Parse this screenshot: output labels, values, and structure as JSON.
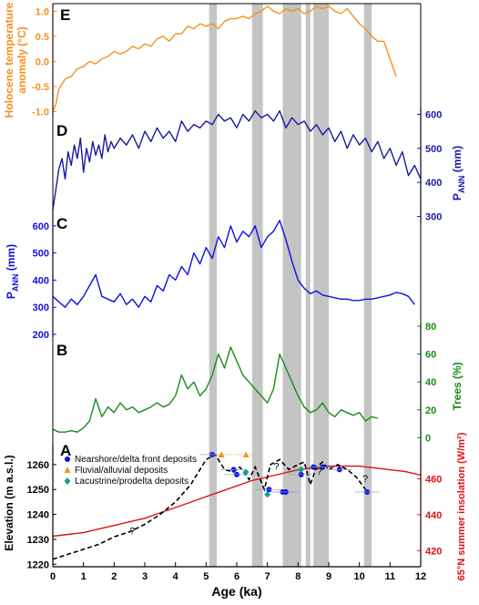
{
  "xaxis": {
    "label": "Age (ka)",
    "range": [
      0,
      12
    ],
    "ticks": [
      0,
      1,
      2,
      3,
      4,
      5,
      6,
      7,
      8,
      9,
      10,
      11,
      12
    ]
  },
  "shaded_bands": [
    [
      5.1,
      5.35
    ],
    [
      6.5,
      6.85
    ],
    [
      7.5,
      8.1
    ],
    [
      8.25,
      8.4
    ],
    [
      8.5,
      9.0
    ],
    [
      10.15,
      10.4
    ]
  ],
  "question_marks": [
    {
      "x": 2.5,
      "y": 1232,
      "text": "?"
    },
    {
      "x": 7.2,
      "y": 1258,
      "text": "?"
    },
    {
      "x": 8.6,
      "y": 1256,
      "text": "?"
    },
    {
      "x": 10.1,
      "y": 1253,
      "text": "?"
    }
  ],
  "chart_data": [
    {
      "panel": "E",
      "type": "line",
      "ylabel": "Holocene temperature anomaly (°C)",
      "color": "#f5901e",
      "yaxis_side": "left",
      "ylim": [
        -1.1,
        1.15
      ],
      "yticks": [
        "1.0",
        "0.5",
        "0.0",
        "-0.5",
        "-1.0"
      ],
      "ytick_values": [
        1.0,
        0.5,
        0.0,
        -0.5,
        -1.0
      ],
      "series": [
        {
          "x": [
            0,
            0.1,
            0.2,
            0.4,
            0.6,
            0.8,
            1.0,
            1.2,
            1.4,
            1.6,
            1.8,
            2.0,
            2.2,
            2.4,
            2.6,
            2.8,
            3.0,
            3.2,
            3.4,
            3.6,
            3.8,
            4.0,
            4.2,
            4.4,
            4.6,
            4.8,
            5.0,
            5.2,
            5.4,
            5.6,
            5.8,
            6.0,
            6.2,
            6.4,
            6.6,
            6.8,
            7.0,
            7.2,
            7.4,
            7.6,
            7.8,
            8.0,
            8.2,
            8.4,
            8.6,
            8.8,
            9.0,
            9.2,
            9.4,
            9.6,
            9.8,
            10.0,
            10.2,
            10.4,
            10.6,
            10.8,
            11.0,
            11.2
          ],
          "values": [
            -1.0,
            -0.85,
            -0.55,
            -0.35,
            -0.3,
            -0.15,
            -0.1,
            0.0,
            -0.05,
            0.05,
            0.1,
            0.2,
            0.15,
            0.2,
            0.3,
            0.25,
            0.35,
            0.3,
            0.45,
            0.5,
            0.4,
            0.55,
            0.55,
            0.7,
            0.65,
            0.75,
            0.7,
            0.75,
            0.65,
            0.8,
            0.85,
            0.85,
            0.9,
            0.85,
            0.95,
            1.0,
            1.1,
            1.0,
            0.95,
            1.05,
            1.0,
            1.05,
            0.95,
            1.0,
            1.1,
            1.05,
            1.1,
            1.0,
            0.95,
            1.05,
            0.9,
            0.75,
            0.65,
            0.5,
            0.4,
            0.4,
            0.05,
            -0.3
          ]
        }
      ]
    },
    {
      "panel": "D",
      "type": "line",
      "ylabel": "PANN (mm)",
      "color": "#1a1aa0",
      "yaxis_side": "right",
      "ylim": [
        280,
        620
      ],
      "yticks": [
        "600",
        "500",
        "400",
        "300"
      ],
      "ytick_values": [
        600,
        500,
        400,
        300
      ],
      "series": [
        {
          "x": [
            0,
            0.1,
            0.2,
            0.3,
            0.4,
            0.5,
            0.6,
            0.7,
            0.8,
            0.9,
            1.0,
            1.1,
            1.2,
            1.3,
            1.4,
            1.5,
            1.6,
            1.7,
            1.8,
            1.9,
            2.0,
            2.2,
            2.4,
            2.6,
            2.8,
            3.0,
            3.2,
            3.4,
            3.6,
            3.8,
            4.0,
            4.2,
            4.4,
            4.6,
            4.8,
            5.0,
            5.2,
            5.4,
            5.6,
            5.8,
            6.0,
            6.2,
            6.4,
            6.6,
            6.8,
            7.0,
            7.2,
            7.4,
            7.6,
            7.8,
            8.0,
            8.2,
            8.4,
            8.6,
            8.8,
            9.0,
            9.2,
            9.4,
            9.6,
            9.8,
            10.0,
            10.2,
            10.4,
            10.6,
            10.8,
            11.0,
            11.2,
            11.4,
            11.6,
            11.8,
            12.0
          ],
          "values": [
            320,
            380,
            440,
            470,
            410,
            490,
            450,
            510,
            470,
            530,
            430,
            500,
            460,
            520,
            480,
            510,
            470,
            540,
            490,
            520,
            500,
            530,
            510,
            540,
            500,
            550,
            520,
            560,
            530,
            550,
            520,
            580,
            550,
            570,
            560,
            580,
            570,
            600,
            580,
            590,
            560,
            600,
            580,
            610,
            590,
            600,
            580,
            610,
            560,
            590,
            570,
            580,
            550,
            570,
            540,
            560,
            520,
            550,
            500,
            540,
            510,
            530,
            490,
            520,
            470,
            500,
            450,
            490,
            420,
            450,
            410
          ]
        }
      ]
    },
    {
      "panel": "C",
      "type": "line",
      "ylabel": "PANN (mm)",
      "color": "#1010e0",
      "yaxis_side": "left",
      "ylim": [
        190,
        660
      ],
      "yticks": [
        "600",
        "500",
        "400",
        "300",
        "200"
      ],
      "ytick_values": [
        600,
        500,
        400,
        300,
        200
      ],
      "series": [
        {
          "x": [
            0,
            0.2,
            0.4,
            0.6,
            0.8,
            1.0,
            1.2,
            1.4,
            1.6,
            1.8,
            2.0,
            2.2,
            2.4,
            2.6,
            2.8,
            3.0,
            3.2,
            3.4,
            3.6,
            3.8,
            4.0,
            4.2,
            4.4,
            4.6,
            4.8,
            5.0,
            5.2,
            5.4,
            5.6,
            5.8,
            6.0,
            6.2,
            6.4,
            6.6,
            6.8,
            7.0,
            7.2,
            7.4,
            7.6,
            7.8,
            8.0,
            8.2,
            8.4,
            8.6,
            8.8,
            9.0,
            9.2,
            9.4,
            9.6,
            9.8,
            10.0,
            10.2,
            10.4,
            10.6,
            10.8,
            11.0,
            11.2,
            11.4,
            11.6,
            11.8
          ],
          "values": [
            340,
            320,
            300,
            330,
            310,
            340,
            380,
            420,
            340,
            330,
            320,
            350,
            310,
            330,
            300,
            340,
            320,
            380,
            360,
            420,
            400,
            450,
            420,
            500,
            460,
            520,
            480,
            560,
            520,
            600,
            540,
            580,
            560,
            600,
            520,
            560,
            580,
            620,
            550,
            470,
            400,
            370,
            350,
            360,
            345,
            340,
            335,
            330,
            330,
            325,
            325,
            330,
            330,
            335,
            340,
            345,
            355,
            350,
            340,
            310
          ]
        }
      ]
    },
    {
      "panel": "B",
      "type": "line",
      "ylabel": "Trees (%)",
      "color": "#1a8a1a",
      "yaxis_side": "right",
      "ylim": [
        -5,
        82
      ],
      "yticks": [
        "80",
        "60",
        "40",
        "20",
        "0"
      ],
      "ytick_values": [
        80,
        60,
        40,
        20,
        0
      ],
      "series": [
        {
          "x": [
            0,
            0.2,
            0.4,
            0.6,
            0.8,
            1.0,
            1.2,
            1.4,
            1.6,
            1.8,
            2.0,
            2.2,
            2.4,
            2.6,
            2.8,
            3.0,
            3.2,
            3.4,
            3.6,
            3.8,
            4.0,
            4.2,
            4.4,
            4.6,
            4.8,
            5.0,
            5.2,
            5.4,
            5.6,
            5.8,
            6.0,
            6.2,
            6.4,
            6.6,
            6.8,
            7.0,
            7.2,
            7.4,
            7.6,
            7.8,
            8.0,
            8.2,
            8.4,
            8.6,
            8.8,
            9.0,
            9.2,
            9.4,
            9.6,
            9.8,
            10.0,
            10.2,
            10.4,
            10.6
          ],
          "values": [
            6,
            4,
            4,
            5,
            4,
            7,
            12,
            28,
            15,
            22,
            18,
            25,
            20,
            22,
            18,
            20,
            22,
            25,
            22,
            24,
            30,
            45,
            35,
            40,
            30,
            35,
            45,
            60,
            50,
            65,
            55,
            45,
            40,
            35,
            30,
            25,
            35,
            60,
            50,
            40,
            30,
            22,
            18,
            20,
            25,
            18,
            15,
            20,
            18,
            16,
            18,
            12,
            15,
            14
          ]
        }
      ]
    },
    {
      "panel": "A",
      "type": "line",
      "ylabel": "Elevation (m a.s.l.)",
      "y2label": "65°N summer insolation (W/m²)",
      "yaxis_side": "left",
      "ylim": [
        1219,
        1268
      ],
      "yticks": [
        "1260",
        "1250",
        "1240",
        "1230",
        "1220"
      ],
      "ytick_values": [
        1260,
        1250,
        1240,
        1230,
        1220
      ],
      "y2lim": [
        411,
        479
      ],
      "y2ticks": [
        "460",
        "440",
        "420"
      ],
      "y2tick_values": [
        460,
        440,
        420
      ],
      "series": [
        {
          "name": "insolation",
          "axis": "right",
          "color": "#e01010",
          "x": [
            0,
            0.5,
            1,
            1.5,
            2,
            2.5,
            3,
            3.5,
            4,
            4.5,
            5,
            5.5,
            6,
            6.5,
            7,
            7.5,
            8,
            8.5,
            9,
            9.5,
            10,
            10.5,
            11,
            11.5,
            12
          ],
          "values": [
            428,
            429,
            430,
            432,
            434,
            436,
            438,
            441,
            444,
            447,
            450,
            453,
            456,
            459,
            461,
            463,
            465,
            466,
            467,
            467,
            467,
            466,
            465,
            464,
            462
          ]
        },
        {
          "name": "lake-level",
          "axis": "left",
          "color": "#000000",
          "dashed": true,
          "x": [
            0,
            0.5,
            1,
            1.5,
            2,
            2.5,
            3,
            3.5,
            4,
            4.5,
            5,
            5.3,
            5.6,
            5.9,
            6.1,
            6.4,
            6.6,
            6.9,
            7.1,
            7.4,
            7.7,
            8.0,
            8.2,
            8.4,
            8.6,
            8.8,
            9.0,
            9.3,
            9.6,
            9.9,
            10.2
          ],
          "values": [
            1222,
            1224,
            1226,
            1228,
            1231,
            1233,
            1236,
            1240,
            1245,
            1252,
            1262,
            1264,
            1258,
            1257,
            1259,
            1254,
            1259,
            1250,
            1260,
            1262,
            1258,
            1260,
            1261,
            1252,
            1259,
            1261,
            1258,
            1260,
            1258,
            1255,
            1250
          ]
        }
      ],
      "legend": [
        {
          "label": "Nearshore/delta front deposits",
          "marker": "circle",
          "color": "#1010e0"
        },
        {
          "label": "Fluvial/alluvial deposits",
          "marker": "triangle",
          "color": "#f5901e"
        },
        {
          "label": "Lacustrine/prodelta deposits",
          "marker": "diamond",
          "color": "#14a090"
        }
      ],
      "points": {
        "nearshore": {
          "x": [
            5.2,
            5.9,
            6.0,
            7.05,
            7.5,
            7.6,
            8.1,
            8.5,
            8.8,
            9.35,
            10.25
          ],
          "y": [
            1264,
            1258,
            1256,
            1250,
            1249,
            1249,
            1256,
            1259,
            1259,
            1258,
            1249
          ]
        },
        "fluvial": {
          "x": [
            5.5,
            6.3
          ],
          "y": [
            1264,
            1264
          ]
        },
        "lacustrine": {
          "x": [
            6.3,
            7.0,
            8.1
          ],
          "y": [
            1257,
            1248,
            1258
          ]
        }
      }
    }
  ]
}
